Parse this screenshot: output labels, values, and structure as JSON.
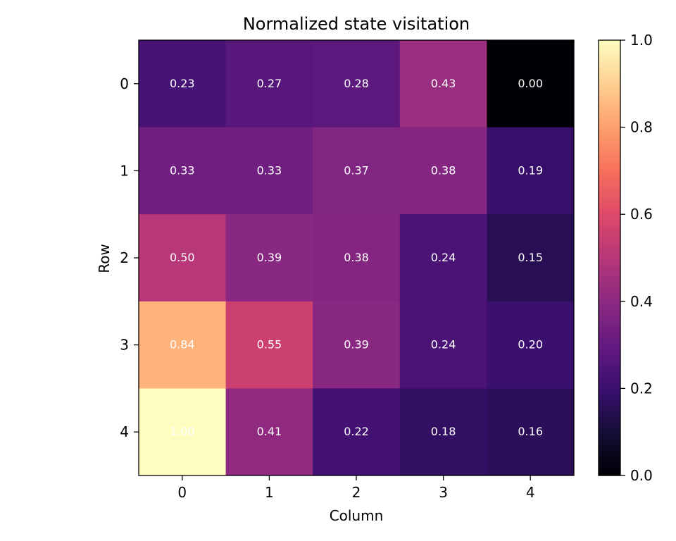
{
  "chart_data": {
    "type": "heatmap",
    "title": "Normalized state visitation",
    "xlabel": "Column",
    "ylabel": "Row",
    "x_categories": [
      "0",
      "1",
      "2",
      "3",
      "4"
    ],
    "y_categories": [
      "0",
      "1",
      "2",
      "3",
      "4"
    ],
    "values": [
      [
        0.23,
        0.27,
        0.28,
        0.43,
        0.0
      ],
      [
        0.33,
        0.33,
        0.37,
        0.38,
        0.19
      ],
      [
        0.5,
        0.39,
        0.38,
        0.24,
        0.15
      ],
      [
        0.84,
        0.55,
        0.39,
        0.24,
        0.2
      ],
      [
        1.0,
        0.41,
        0.22,
        0.18,
        0.16
      ]
    ],
    "value_labels": [
      [
        "0.23",
        "0.27",
        "0.28",
        "0.43",
        "0.00"
      ],
      [
        "0.33",
        "0.33",
        "0.37",
        "0.38",
        "0.19"
      ],
      [
        "0.50",
        "0.39",
        "0.38",
        "0.24",
        "0.15"
      ],
      [
        "0.84",
        "0.55",
        "0.39",
        "0.24",
        "0.20"
      ],
      [
        "1.00",
        "0.41",
        "0.22",
        "0.18",
        "0.16"
      ]
    ],
    "colormap": "magma",
    "color_range": [
      0.0,
      1.0
    ],
    "colorbar_ticks": [
      "0.0",
      "0.2",
      "0.4",
      "0.6",
      "0.8",
      "1.0"
    ],
    "grid": false
  }
}
